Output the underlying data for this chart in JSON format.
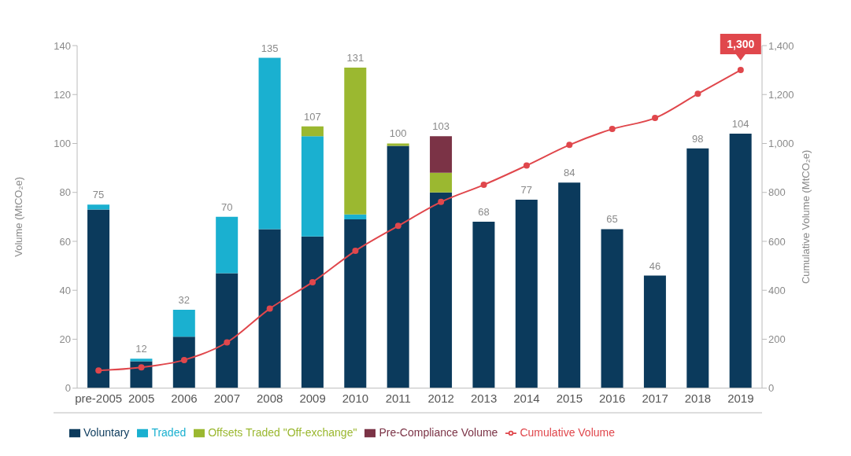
{
  "chart_data": {
    "type": "bar",
    "stacked": true,
    "categories": [
      "pre-2005",
      "2005",
      "2006",
      "2007",
      "2008",
      "2009",
      "2010",
      "2011",
      "2012",
      "2013",
      "2014",
      "2015",
      "2016",
      "2017",
      "2018",
      "2019"
    ],
    "series": [
      {
        "name": "Voluntary",
        "color": "#0b3a5c",
        "values": [
          73,
          11,
          21,
          47,
          65,
          62,
          69,
          99,
          80,
          68,
          77,
          84,
          65,
          46,
          98,
          104
        ]
      },
      {
        "name": "Traded",
        "color": "#1ab0d0",
        "values": [
          2,
          1,
          11,
          23,
          70,
          41,
          2,
          0,
          0,
          0,
          0,
          0,
          0,
          0,
          0,
          0
        ]
      },
      {
        "name": "Offsets Traded \"Off-exchange\"",
        "color": "#9bb830",
        "values": [
          0,
          0,
          0,
          0,
          0,
          4,
          60,
          1,
          8,
          0,
          0,
          0,
          0,
          0,
          0,
          0
        ]
      },
      {
        "name": "Pre-Compliance Volume",
        "color": "#7b3346",
        "values": [
          0,
          0,
          0,
          0,
          0,
          0,
          0,
          0,
          15,
          0,
          0,
          0,
          0,
          0,
          0,
          0
        ]
      },
      {
        "name": "Cumulative Volume",
        "type": "line",
        "axis": "y2",
        "color": "#e0474c",
        "marker": "circle",
        "values": [
          72,
          85,
          115,
          187,
          325,
          433,
          561,
          663,
          761,
          831,
          910,
          994,
          1059,
          1104,
          1203,
          1300
        ]
      }
    ],
    "totals": [
      "75",
      "12",
      "32",
      "70",
      "135",
      "107",
      "131",
      "100",
      "103",
      "68",
      "77",
      "84",
      "65",
      "46",
      "98",
      "104"
    ],
    "ylabel": "Volume (MtCO₂e)",
    "y2label": "Cumulative Volume (MtCO₂e)",
    "ylim": [
      0,
      140
    ],
    "yticks": [
      0,
      20,
      40,
      60,
      80,
      100,
      120,
      140
    ],
    "y2lim": [
      0,
      1400
    ],
    "y2ticks": [
      0,
      {
        "value": 200,
        "label": "200"
      },
      {
        "value": 400,
        "label": "400"
      },
      {
        "value": 600,
        "label": "600"
      },
      {
        "value": 800,
        "label": "800"
      },
      {
        "value": 1000,
        "label": "1,000"
      },
      {
        "value": 1200,
        "label": "1,200"
      },
      {
        "value": 1400,
        "label": "1,400"
      }
    ],
    "annotations": [
      "1,300"
    ],
    "legend": "bottom",
    "grid": false
  }
}
